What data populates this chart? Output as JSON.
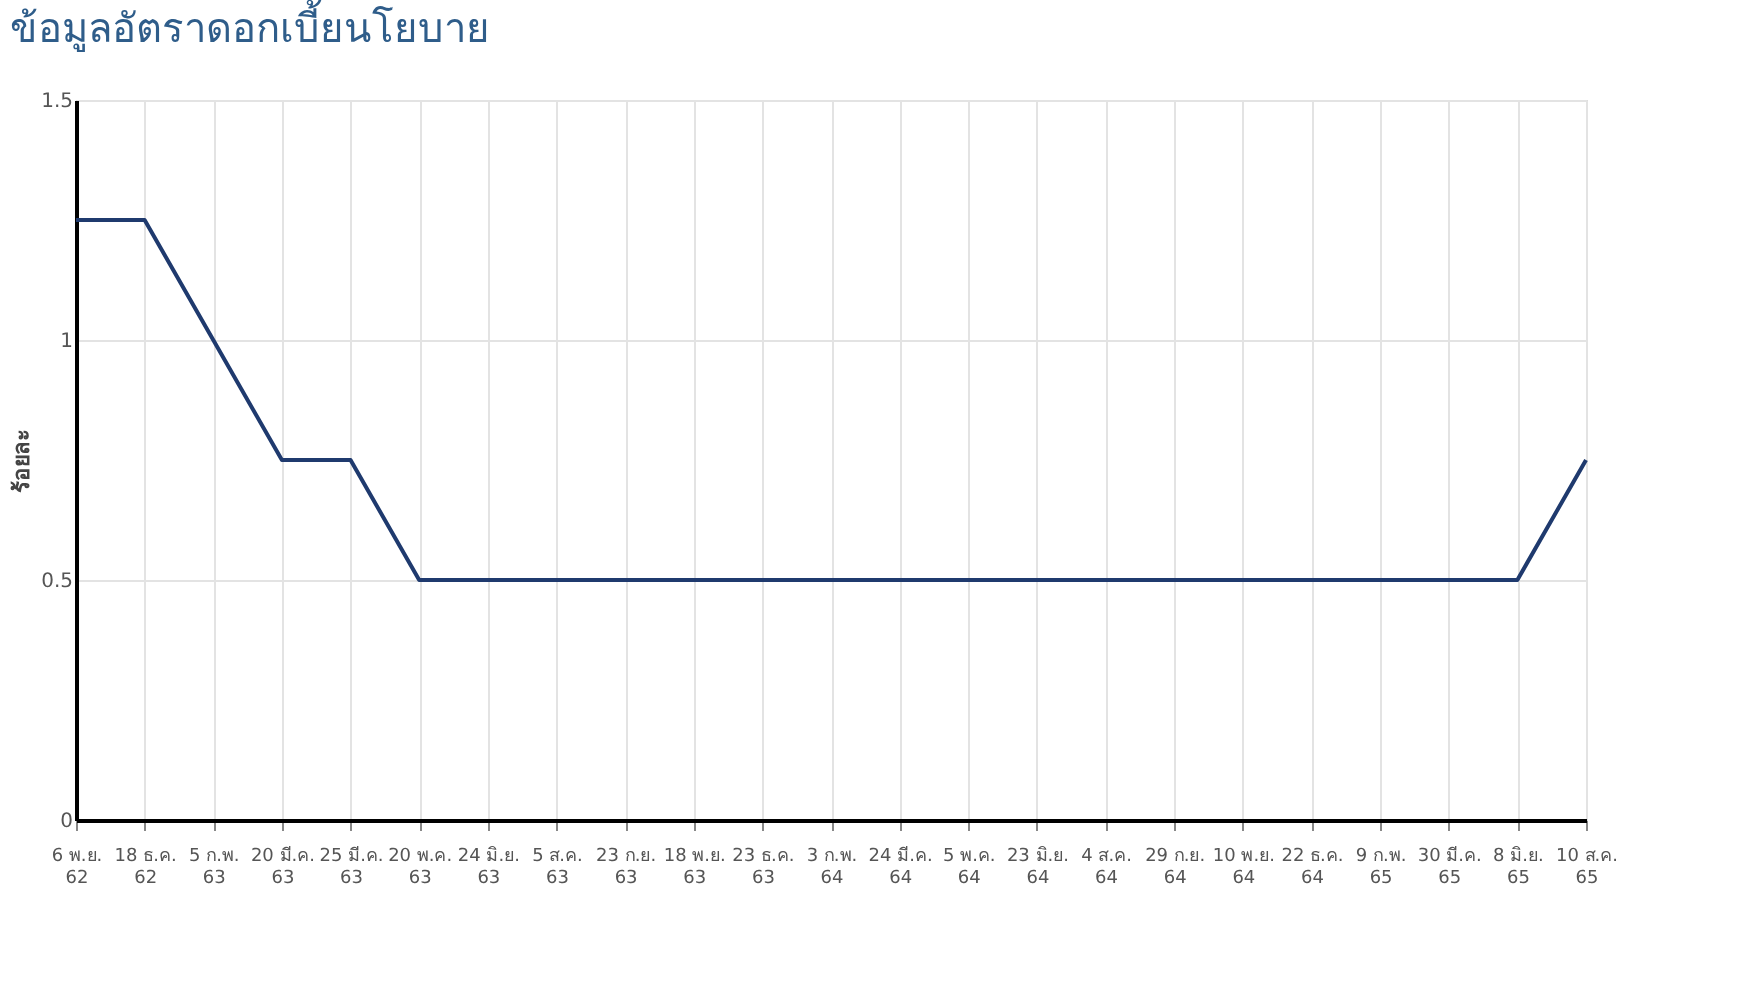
{
  "chart_data": {
    "type": "line",
    "title": "ข้อมูลอัตราดอกเบี้ยนโยบาย",
    "ylabel": "ร้อยละ",
    "categories": [
      "6 พ.ย. 62",
      "18 ธ.ค. 62",
      "5 ก.พ. 63",
      "20 มี.ค. 63",
      "25 มี.ค. 63",
      "20 พ.ค. 63",
      "24 มิ.ย. 63",
      "5 ส.ค. 63",
      "23 ก.ย. 63",
      "18 พ.ย. 63",
      "23 ธ.ค. 63",
      "3 ก.พ. 64",
      "24 มี.ค. 64",
      "5 พ.ค. 64",
      "23 มิ.ย. 64",
      "4 ส.ค. 64",
      "29 ก.ย. 64",
      "10 พ.ย. 64",
      "22 ธ.ค. 64",
      "9 ก.พ. 65",
      "30 มี.ค. 65",
      "8 มิ.ย. 65",
      "10 ส.ค. 65"
    ],
    "series": [
      {
        "color": "#1f3a6e",
        "values": [
          1.25,
          1.25,
          1.0,
          0.75,
          0.75,
          0.5,
          0.5,
          0.5,
          0.5,
          0.5,
          0.5,
          0.5,
          0.5,
          0.5,
          0.5,
          0.5,
          0.5,
          0.5,
          0.5,
          0.5,
          0.5,
          0.5,
          0.75
        ]
      }
    ],
    "ylim": [
      0,
      1.5
    ],
    "yticks": [
      0,
      0.5,
      1,
      1.5
    ],
    "grid": true,
    "legend": false,
    "marker": "none",
    "line_style": "solid"
  }
}
